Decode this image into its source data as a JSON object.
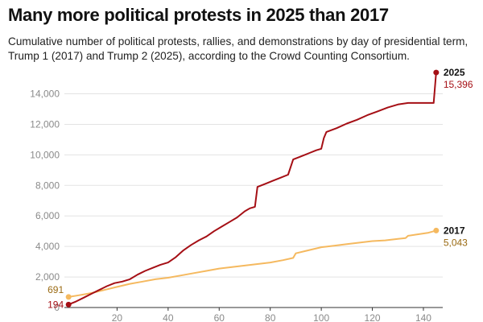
{
  "title": "Many more political protests in 2025 than 2017",
  "subtitle": "Cumulative number of political protests, rallies, and demonstrations by day of presidential term, Trump 1 (2017) and Trump 2 (2025), according to the Crowd Counting Consortium.",
  "chart_data": {
    "type": "line",
    "title": "Many more political protests in 2025 than 2017",
    "xlabel": "",
    "ylabel": "",
    "xlim": [
      0,
      146
    ],
    "ylim": [
      0,
      15400
    ],
    "x_ticks": [
      20,
      40,
      60,
      80,
      100,
      120,
      140
    ],
    "y_ticks": [
      0,
      2000,
      4000,
      6000,
      8000,
      10000,
      12000,
      14000
    ],
    "y_tick_labels": [
      "0",
      "2,000",
      "4,000",
      "6,000",
      "8,000",
      "10,000",
      "12,000",
      "14,000"
    ],
    "grid": "horizontal",
    "series": [
      {
        "name": "2025",
        "color": "#a50f15",
        "start_label": "194",
        "end_label": "15,396",
        "x": [
          1,
          4,
          7,
          10,
          13,
          16,
          19,
          22,
          25,
          28,
          31,
          34,
          37,
          40,
          43,
          46,
          49,
          52,
          55,
          58,
          61,
          64,
          67,
          70,
          72,
          74,
          75,
          78,
          81,
          84,
          87,
          89,
          92,
          95,
          98,
          100,
          101,
          102,
          106,
          110,
          114,
          118,
          122,
          126,
          130,
          134,
          138,
          142,
          144,
          145
        ],
        "y": [
          194,
          400,
          650,
          900,
          1150,
          1400,
          1600,
          1700,
          1850,
          2150,
          2400,
          2600,
          2800,
          2950,
          3300,
          3750,
          4100,
          4400,
          4650,
          5000,
          5300,
          5600,
          5900,
          6300,
          6500,
          6600,
          7900,
          8100,
          8300,
          8500,
          8700,
          9700,
          9900,
          10100,
          10300,
          10400,
          11100,
          11500,
          11750,
          12050,
          12300,
          12600,
          12850,
          13100,
          13300,
          13400,
          13400,
          13400,
          13400,
          15396
        ]
      },
      {
        "name": "2017",
        "color": "#f5b95f",
        "start_label": "691",
        "end_label": "5,043",
        "x": [
          1,
          5,
          10,
          15,
          20,
          25,
          30,
          35,
          40,
          45,
          50,
          55,
          60,
          65,
          70,
          75,
          80,
          85,
          89,
          90,
          95,
          100,
          105,
          110,
          115,
          120,
          125,
          130,
          133,
          134,
          138,
          142,
          145
        ],
        "y": [
          691,
          800,
          950,
          1150,
          1350,
          1550,
          1700,
          1850,
          1950,
          2100,
          2250,
          2400,
          2550,
          2650,
          2750,
          2850,
          2950,
          3100,
          3250,
          3550,
          3750,
          3950,
          4050,
          4150,
          4250,
          4350,
          4400,
          4500,
          4550,
          4700,
          4800,
          4900,
          5043
        ]
      }
    ]
  }
}
